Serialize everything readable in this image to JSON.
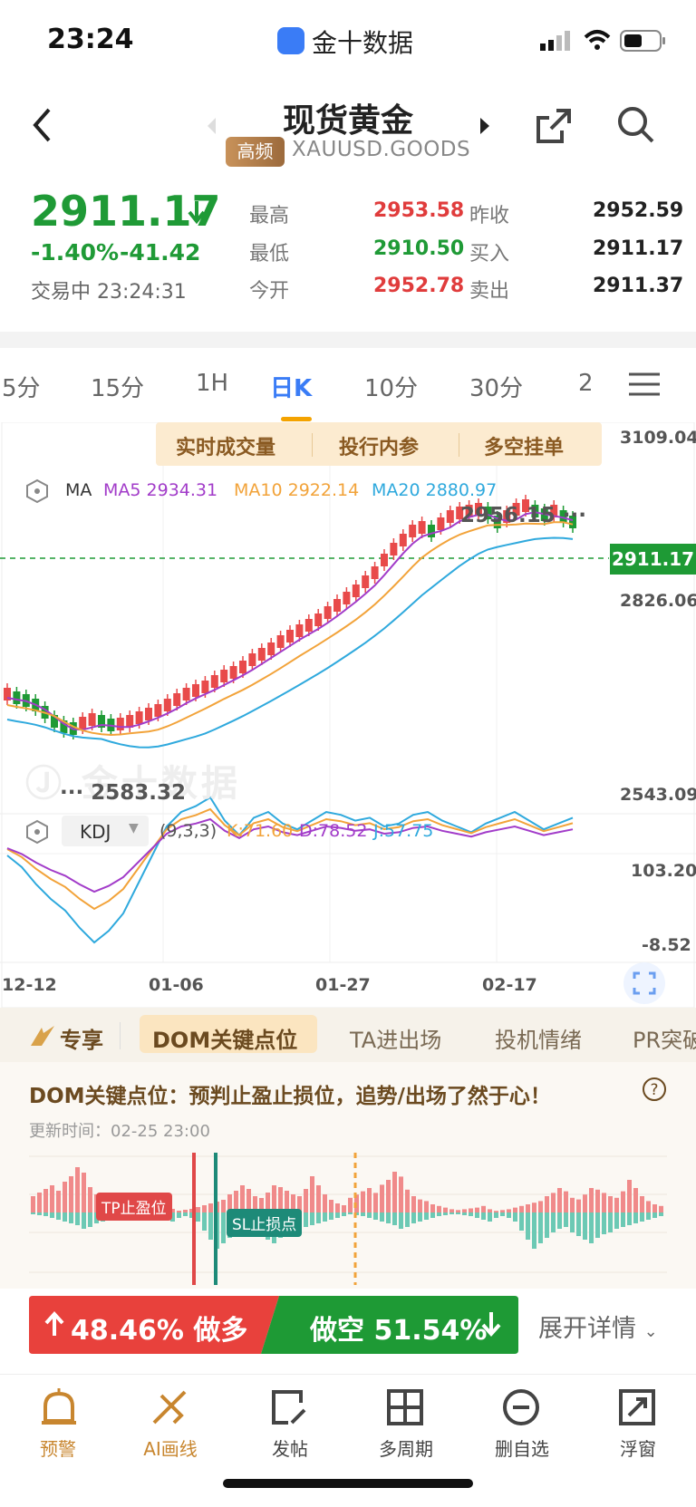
{
  "status_bar": {
    "time": "23:24",
    "app_name": "金十数据"
  },
  "header": {
    "title": "现货黄金",
    "badge": "高频",
    "symbol": "XAUUSD.GOODS"
  },
  "quote": {
    "price": "2911.17",
    "change_pct": "-1.40%",
    "change": "-41.42",
    "status": "交易中 23:24:31",
    "high_label": "最高",
    "high": "2953.58",
    "low_label": "最低",
    "low": "2910.50",
    "open_label": "今开",
    "open": "2952.78",
    "prev_close_label": "昨收",
    "prev_close": "2952.59",
    "bid_label": "买入",
    "bid": "2911.17",
    "ask_label": "卖出",
    "ask": "2911.37"
  },
  "period_tabs": [
    "5分",
    "15分",
    "1H",
    "日K",
    "10分",
    "30分",
    "2"
  ],
  "active_period": "日K",
  "chart_promos": [
    "实时成交量",
    "投行内参",
    "多空挂单"
  ],
  "main_chart": {
    "indicator": "MA",
    "ma5": "MA5 2934.31",
    "ma10": "MA10 2922.14",
    "ma20": "MA20 2880.97",
    "y_ticks": [
      "3109.04",
      "2826.06",
      "2543.09"
    ],
    "current_price_tag": "2911.17",
    "max_label": "2956.15",
    "min_label": "2583.32",
    "colors": {
      "up": "#e84a4a",
      "down": "#1e9a35",
      "ma5": "#a23cc9",
      "ma10": "#f2a33a",
      "ma20": "#2fa9dd"
    }
  },
  "kdj": {
    "name": "KDJ",
    "params": "(9,3,3)",
    "k": "K:71.60",
    "d": "D:78.52",
    "j": "J:57.75",
    "y_ticks": [
      "103.20",
      "-8.52"
    ]
  },
  "x_axis": [
    "12-12",
    "01-06",
    "01-27",
    "02-17"
  ],
  "feature_tabs": [
    "专享",
    "DOM关键点位",
    "TA进出场",
    "投机情绪",
    "PR突破"
  ],
  "dom": {
    "headline": "DOM关键点位：预判止盈止损位，追势/出场了然于心！",
    "update_time": "更新时间：02-25 23:00",
    "tp_label": "TP止盈位",
    "sl_label": "SL止损点"
  },
  "sentiment": {
    "long_text": "48.46% 做多",
    "short_text": "做空 51.54%",
    "long_pct": 48.46,
    "short_pct": 51.54,
    "expand_label": "展开详情"
  },
  "bottom_nav": [
    "预警",
    "AI画线",
    "发帖",
    "多周期",
    "删自选",
    "浮窗"
  ]
}
